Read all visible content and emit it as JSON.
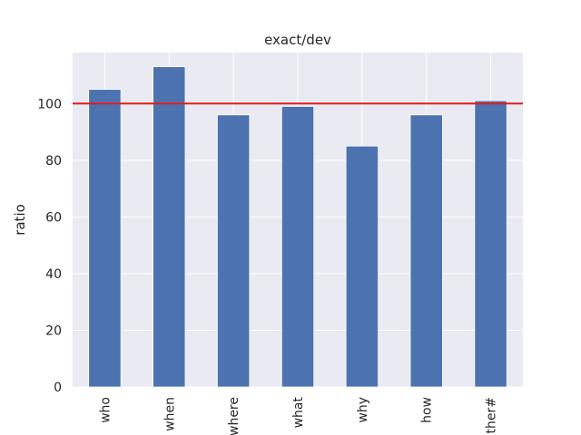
{
  "chart_data": {
    "type": "bar",
    "title": "exact/dev",
    "xlabel": "",
    "ylabel": "ratio",
    "categories": [
      "who",
      "when",
      "where",
      "what",
      "why",
      "how",
      "ther#"
    ],
    "values": [
      105,
      113,
      96,
      99,
      85,
      96,
      101
    ],
    "ylim": [
      0,
      118
    ],
    "yticks": [
      0,
      20,
      40,
      60,
      80,
      100
    ],
    "reference_line": {
      "y": 100,
      "color": "#e41a1c"
    },
    "grid": true,
    "legend": "none",
    "colors": {
      "bar": "#4c72b0",
      "plot_background": "#eaeaf2",
      "grid": "#ffffff"
    }
  }
}
